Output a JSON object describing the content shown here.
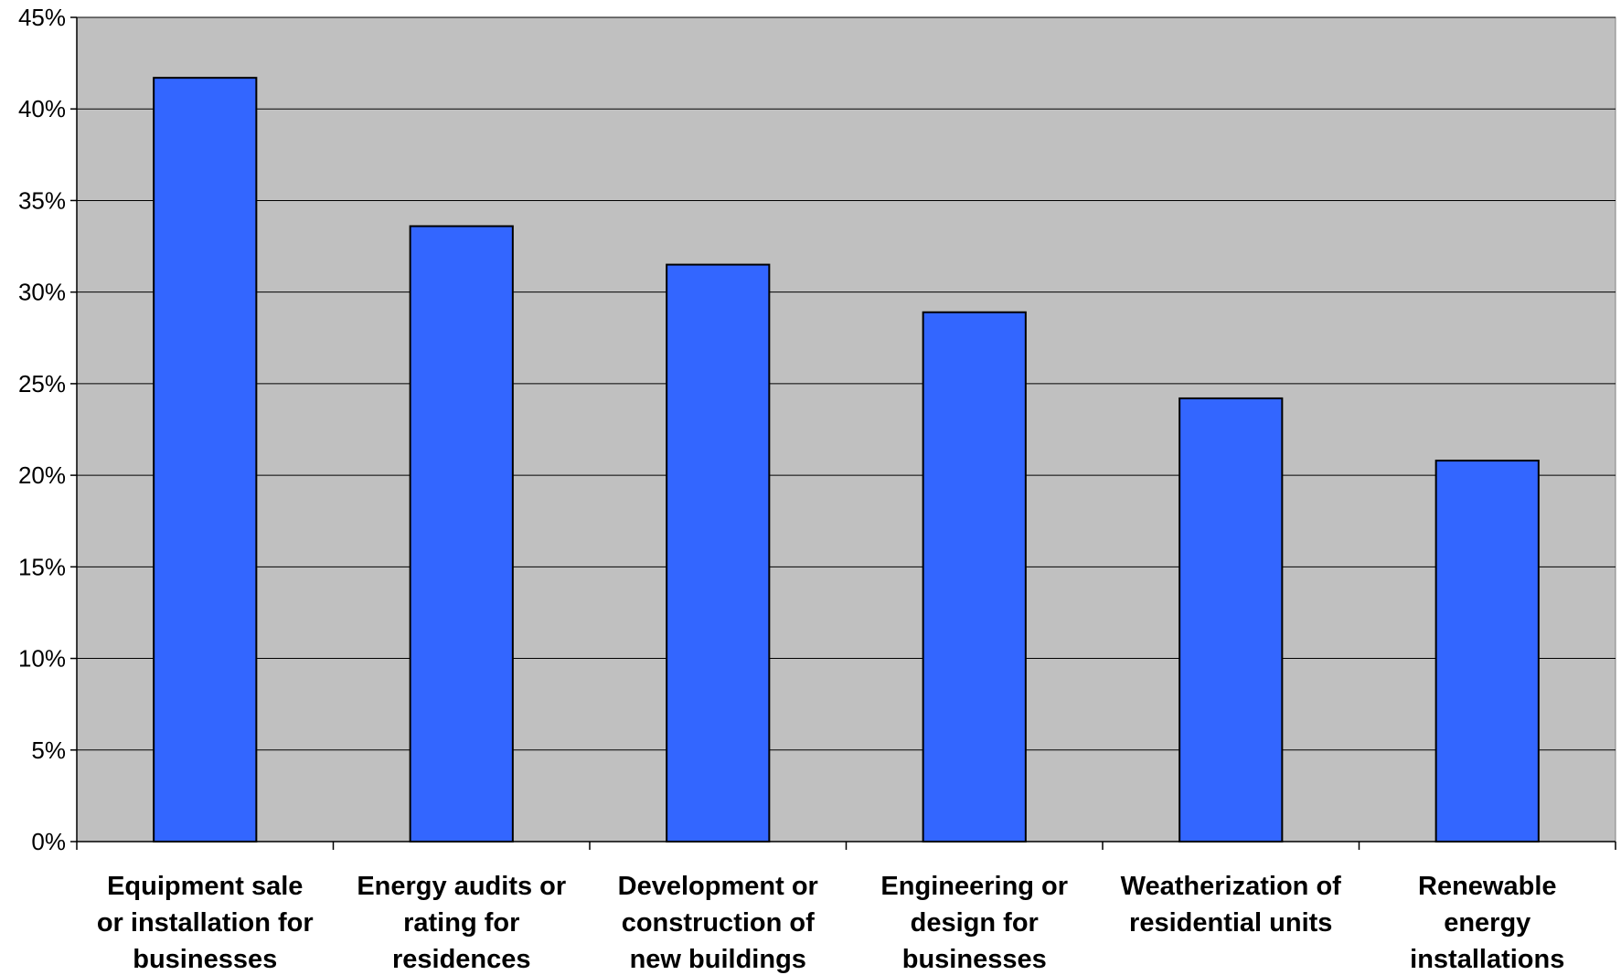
{
  "chart_data": {
    "type": "bar",
    "categories": [
      [
        "Equipment sale",
        "or installation for",
        "businesses"
      ],
      [
        "Energy audits or",
        "rating for",
        "residences"
      ],
      [
        "Development or",
        "construction of",
        "new buildings"
      ],
      [
        "Engineering or",
        "design for",
        "businesses"
      ],
      [
        "Weatherization of",
        "residential units"
      ],
      [
        "Renewable",
        "energy",
        "installations"
      ]
    ],
    "values": [
      41.7,
      33.6,
      31.5,
      28.9,
      24.2,
      20.8
    ],
    "ylim": [
      0,
      45
    ],
    "ytick_step": 5,
    "ytick_labels": [
      "0%",
      "5%",
      "10%",
      "15%",
      "20%",
      "25%",
      "30%",
      "35%",
      "40%",
      "45%"
    ],
    "grid": true,
    "legend": "none",
    "colors": {
      "plot_background": "#c0c0c0",
      "bar_fill": "#3366ff",
      "bar_stroke": "#000000",
      "grid": "#000000"
    }
  }
}
